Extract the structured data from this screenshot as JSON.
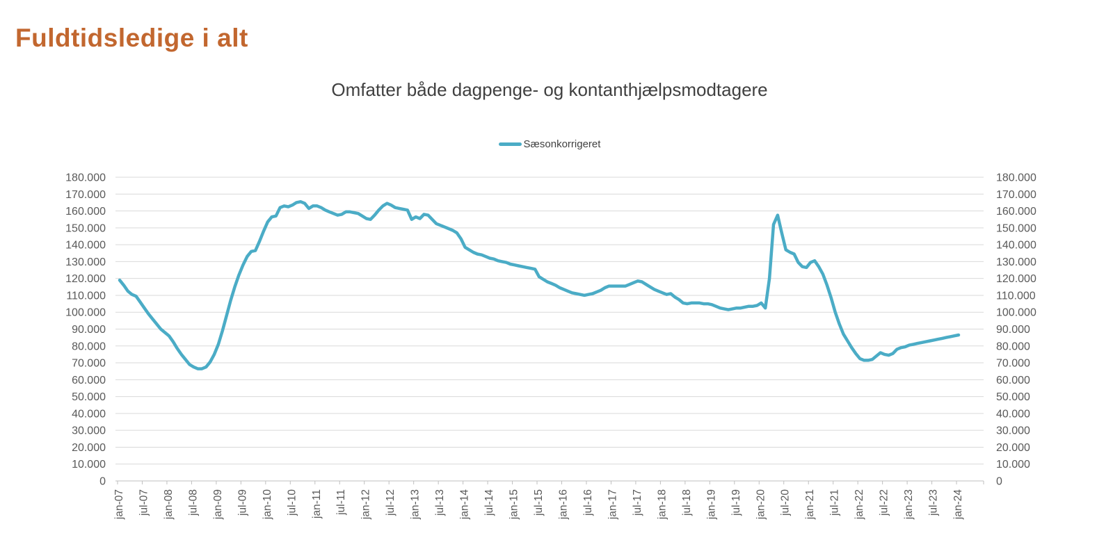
{
  "page": {
    "title": "Fuldtidsledige i alt"
  },
  "chart": {
    "title": "Omfatter både dagpenge- og kontanthjælpsmodtagere",
    "legend": [
      {
        "label": "Sæsonkorrigeret",
        "color": "#4BACC6"
      }
    ]
  },
  "colors": {
    "title": "#C2672F",
    "chart_title": "#404040",
    "series": "#4BACC6",
    "gridline": "#D9D9D9",
    "axis": "#BFBFBF",
    "tick_label": "#595959"
  },
  "chart_data": {
    "type": "line",
    "title": "Omfatter både dagpenge- og kontanthjælpsmodtagere",
    "xlabel": "",
    "ylabel": "",
    "ylim": [
      0,
      180000
    ],
    "grid": "horizontal",
    "legend_position": "top",
    "y_axis_sides": "both",
    "x_labels_rotation": -90,
    "y_ticks": [
      0,
      10000,
      20000,
      30000,
      40000,
      50000,
      60000,
      70000,
      80000,
      90000,
      100000,
      110000,
      120000,
      130000,
      140000,
      150000,
      160000,
      170000,
      180000
    ],
    "y_tick_labels": [
      "0",
      "10.000",
      "20.000",
      "30.000",
      "40.000",
      "50.000",
      "60.000",
      "70.000",
      "80.000",
      "90.000",
      "100.000",
      "110.000",
      "120.000",
      "130.000",
      "140.000",
      "150.000",
      "160.000",
      "170.000",
      "180.000"
    ],
    "x_tick_labels": [
      "jan-07",
      "jul-07",
      "jan-08",
      "jul-08",
      "jan-09",
      "jul-09",
      "jan-10",
      "jul-10",
      "jan-11",
      "jul-11",
      "jan-12",
      "jul-12",
      "jan-13",
      "jul-13",
      "jan-14",
      "jul-14",
      "jan-15",
      "jul-15",
      "jan-16",
      "jul-16",
      "jan-17",
      "jul-17",
      "jan-18",
      "jul-18",
      "jan-19",
      "jul-19",
      "jan-20",
      "jul-20",
      "jan-21",
      "jul-21",
      "jan-22",
      "jul-22",
      "jan-23",
      "jul-23",
      "jan-24"
    ],
    "series": [
      {
        "name": "Sæsonkorrigeret",
        "color": "#4BACC6",
        "frequency": "monthly",
        "x_start": "jan-07",
        "x_end": "jan-24",
        "values": [
          119000,
          116000,
          112500,
          110500,
          109500,
          106000,
          102500,
          99000,
          96000,
          93000,
          90000,
          88000,
          86000,
          82500,
          78500,
          75000,
          72000,
          69000,
          67500,
          66500,
          66500,
          67500,
          70500,
          75000,
          81000,
          89000,
          98000,
          107000,
          115000,
          122000,
          128000,
          133000,
          136000,
          136500,
          142000,
          148000,
          153500,
          156500,
          157000,
          162000,
          163000,
          162500,
          163500,
          165000,
          165500,
          164500,
          161500,
          163000,
          163000,
          162000,
          160500,
          159500,
          158500,
          157500,
          158000,
          159500,
          159500,
          159000,
          158500,
          157000,
          155500,
          155000,
          157500,
          160500,
          163000,
          164500,
          163500,
          162000,
          161500,
          161000,
          160500,
          155000,
          156500,
          155500,
          158000,
          157500,
          155000,
          152500,
          151500,
          150500,
          149500,
          148500,
          147000,
          143500,
          138500,
          137000,
          135500,
          134500,
          134000,
          133000,
          132000,
          131500,
          130500,
          130000,
          129500,
          128500,
          128000,
          127500,
          127000,
          126500,
          126000,
          125500,
          121000,
          119500,
          118000,
          117000,
          116000,
          114500,
          113500,
          112500,
          111500,
          111000,
          110500,
          110000,
          110500,
          111000,
          112000,
          113000,
          114500,
          115500,
          115500,
          115500,
          115500,
          115500,
          116500,
          117500,
          118500,
          118000,
          116500,
          115000,
          113500,
          112500,
          111500,
          110500,
          111000,
          109000,
          107500,
          105500,
          105000,
          105500,
          105500,
          105500,
          105000,
          105000,
          104500,
          103500,
          102500,
          102000,
          101500,
          102000,
          102500,
          102500,
          103000,
          103500,
          103500,
          104000,
          105500,
          102500,
          120000,
          152000,
          157500,
          147000,
          137000,
          135500,
          134500,
          129500,
          127000,
          126500,
          129500,
          130500,
          127000,
          122500,
          116000,
          108500,
          100000,
          93000,
          87000,
          83000,
          79000,
          75500,
          72500,
          71500,
          71500,
          72000,
          74000,
          76000,
          75000,
          74500,
          75500,
          78000,
          79000,
          79500,
          80500,
          81000,
          81500,
          82000,
          82500,
          83000,
          83500,
          84000,
          84500,
          85000,
          85500,
          86000,
          86500
        ]
      }
    ]
  }
}
